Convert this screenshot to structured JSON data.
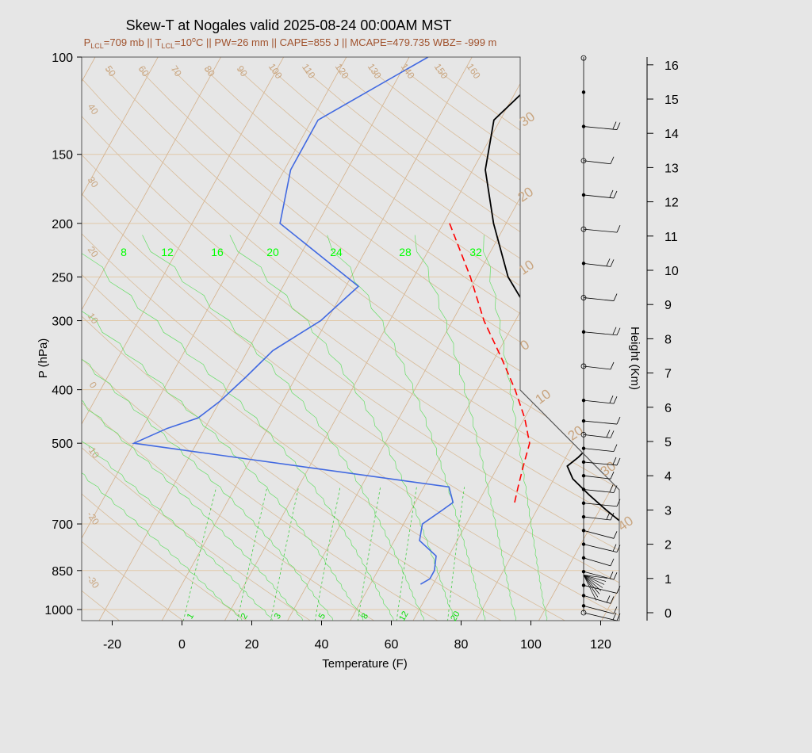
{
  "chart_data": {
    "type": "line",
    "title": "Skew-T at Nogales valid 2025-08-24 00:00AM MST",
    "subtitle": {
      "p_lcl": "=709 mb || ",
      "t_lcl": "=10",
      "deg": "o",
      "rest": "C || PW=26 mm || CAPE=855 J || MCAPE=479.735 WBZ= -999 m",
      "P": "P",
      "T": "T",
      "LCL1": "LCL",
      "LCL2": "LCL"
    },
    "xlabel": "Temperature (F)",
    "ylabel": "P (hPa)",
    "height_label": "Height (Km)",
    "x_ticks": [
      -20,
      0,
      20,
      40,
      60,
      80,
      100,
      120
    ],
    "p_ticks": [
      100,
      150,
      200,
      250,
      300,
      400,
      500,
      700,
      850,
      1000
    ],
    "height_ticks": [
      0,
      1,
      2,
      3,
      4,
      5,
      6,
      7,
      8,
      9,
      10,
      11,
      12,
      13,
      14,
      15,
      16
    ],
    "mixing_ratio_labels_top": [
      8,
      12,
      16,
      20,
      24,
      28,
      32
    ],
    "mixing_ratio_labels_bottom": [
      1,
      2,
      3,
      5,
      8,
      12,
      20
    ],
    "isotherm_labels_top": [
      50,
      60,
      70,
      80,
      90,
      100,
      110,
      120,
      130,
      140,
      150,
      160
    ],
    "isotherm_labels_left": [
      40,
      30,
      20,
      10,
      0,
      -10,
      -20,
      -30
    ],
    "theta_labels_right": [
      30,
      20,
      10,
      0,
      10,
      20,
      30,
      40
    ],
    "series": [
      {
        "name": "",
        "color": "#000000",
        "p": [
          100,
          130,
          160,
          200,
          250,
          300,
          350,
          400,
          450,
          480,
          500,
          530,
          550,
          580,
          620,
          660,
          700,
          750,
          800,
          840,
          870,
          900,
          910
        ],
        "t": [
          -6,
          -11,
          -8,
          -2,
          5,
          13,
          20,
          26,
          30,
          33,
          33,
          32,
          31,
          33,
          37,
          41,
          45,
          50,
          55,
          59,
          61,
          62,
          61
        ]
      },
      {
        "name": "",
        "color": "#4169e1",
        "p": [
          100,
          130,
          160,
          200,
          260,
          300,
          340,
          380,
          420,
          450,
          470,
          500,
          600,
          640,
          660,
          700,
          750,
          800,
          850,
          880,
          900
        ],
        "t": [
          -27,
          -39,
          -39,
          -36,
          -18,
          -21,
          -26,
          -28,
          -30,
          -32,
          -36,
          -40,
          14,
          16,
          15,
          13,
          14,
          18,
          19,
          19,
          18
        ]
      },
      {
        "name": "",
        "color": "#ff0000",
        "dashed": true,
        "p": [
          200,
          250,
          300,
          350,
          400,
          450,
          500,
          550,
          600,
          650
        ],
        "t": [
          -9,
          -1,
          5,
          11,
          16,
          20,
          23,
          24,
          25,
          26
        ]
      }
    ],
    "wind_staff_heights_km": [
      16.2,
      15.2,
      14.2,
      13.2,
      12.2,
      11.2,
      10.2,
      9.2,
      8.2,
      7.2,
      6.2,
      5.6,
      5.2,
      4.8,
      4.4,
      4.0,
      3.6,
      3.2,
      2.8,
      2.4,
      2.0,
      1.6,
      1.2,
      0.8,
      0.5,
      0.2,
      0.0
    ],
    "grid": true
  }
}
